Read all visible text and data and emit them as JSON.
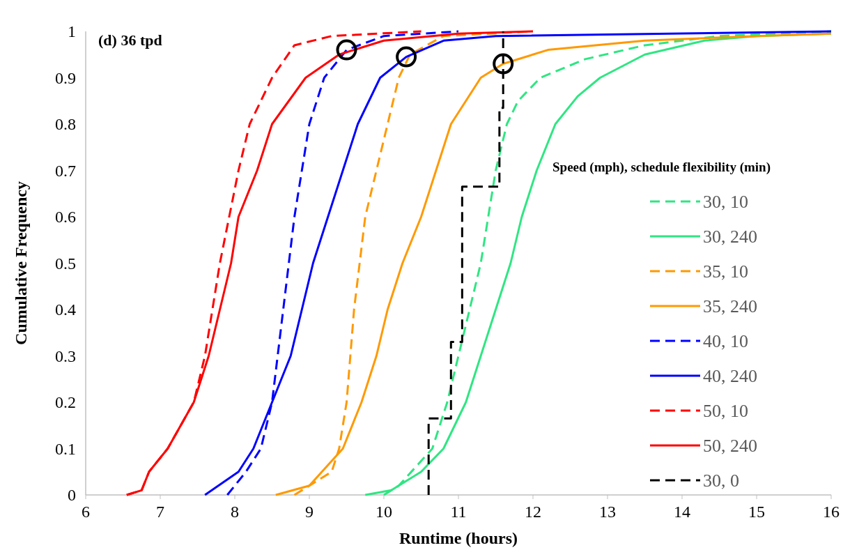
{
  "chart_data": {
    "type": "line",
    "title": "(d) 36 tpd",
    "xlabel": "Runtime (hours)",
    "ylabel": "Cumulative Frequency",
    "legend_title": "Speed (mph), schedule flexibility (min)",
    "legend": "right",
    "grid": false,
    "xlim": [
      6,
      16
    ],
    "xticks": [
      6,
      7,
      8,
      9,
      10,
      11,
      12,
      13,
      14,
      15,
      16
    ],
    "ylim": [
      0,
      1
    ],
    "yticks": [
      0,
      0.1,
      0.2,
      0.3,
      0.4,
      0.5,
      0.6,
      0.7,
      0.8,
      0.9,
      1
    ],
    "series": [
      {
        "name": "30, 10",
        "color": "#2ee682",
        "line_style": "dashed",
        "x": [
          10.0,
          10.2,
          10.65,
          10.85,
          11.0,
          11.15,
          11.3,
          11.4,
          11.5,
          11.65,
          11.8,
          12.1,
          12.7,
          13.5,
          14.5,
          16
        ],
        "values": [
          0,
          0.02,
          0.1,
          0.2,
          0.3,
          0.4,
          0.5,
          0.6,
          0.7,
          0.8,
          0.85,
          0.9,
          0.94,
          0.97,
          0.99,
          1
        ]
      },
      {
        "name": "30, 240",
        "color": "#2ee682",
        "line_style": "solid",
        "x": [
          9.75,
          10.1,
          10.5,
          10.8,
          11.1,
          11.3,
          11.5,
          11.7,
          11.85,
          12.05,
          12.3,
          12.6,
          12.9,
          13.5,
          14.3,
          15,
          16
        ],
        "values": [
          0,
          0.01,
          0.05,
          0.1,
          0.2,
          0.3,
          0.4,
          0.5,
          0.6,
          0.7,
          0.8,
          0.86,
          0.9,
          0.95,
          0.98,
          0.99,
          0.995
        ]
      },
      {
        "name": "35, 10",
        "color": "#ff9900",
        "line_style": "dashed",
        "x": [
          8.8,
          9.3,
          9.4,
          9.5,
          9.6,
          9.75,
          9.9,
          10.05,
          10.2,
          10.35,
          10.8,
          12
        ],
        "values": [
          0,
          0.05,
          0.1,
          0.2,
          0.4,
          0.6,
          0.7,
          0.8,
          0.9,
          0.95,
          0.99,
          1
        ]
      },
      {
        "name": "35, 240",
        "color": "#ff9900",
        "line_style": "solid",
        "x": [
          8.55,
          9.0,
          9.45,
          9.7,
          9.9,
          10.05,
          10.25,
          10.5,
          10.7,
          10.9,
          11.3,
          11.6,
          12.2,
          13.5,
          15,
          16
        ],
        "values": [
          0,
          0.02,
          0.1,
          0.2,
          0.3,
          0.4,
          0.5,
          0.6,
          0.7,
          0.8,
          0.9,
          0.93,
          0.96,
          0.98,
          0.99,
          0.995
        ]
      },
      {
        "name": "40, 10",
        "color": "#0000ff",
        "line_style": "dashed",
        "x": [
          7.9,
          8.15,
          8.35,
          8.5,
          8.65,
          8.8,
          9.0,
          9.2,
          9.5,
          10.0,
          11
        ],
        "values": [
          0,
          0.05,
          0.1,
          0.2,
          0.4,
          0.6,
          0.8,
          0.9,
          0.96,
          0.99,
          1
        ]
      },
      {
        "name": "40, 240",
        "color": "#0000ff",
        "line_style": "solid",
        "x": [
          7.6,
          8.05,
          8.25,
          8.5,
          8.75,
          8.9,
          9.05,
          9.25,
          9.45,
          9.65,
          9.95,
          10.3,
          10.8,
          11.5,
          16
        ],
        "values": [
          0,
          0.05,
          0.1,
          0.2,
          0.3,
          0.4,
          0.5,
          0.6,
          0.7,
          0.8,
          0.9,
          0.945,
          0.98,
          0.99,
          1
        ]
      },
      {
        "name": "50, 10",
        "color": "#ff0000",
        "line_style": "dashed",
        "x": [
          6.55,
          6.75,
          6.85,
          7.1,
          7.45,
          7.6,
          7.8,
          8.05,
          8.2,
          8.5,
          8.8,
          9.3,
          10.5
        ],
        "values": [
          0,
          0.01,
          0.05,
          0.1,
          0.2,
          0.3,
          0.5,
          0.7,
          0.8,
          0.9,
          0.97,
          0.99,
          1
        ]
      },
      {
        "name": "50, 240",
        "color": "#ff0000",
        "line_style": "solid",
        "x": [
          6.55,
          6.75,
          6.85,
          7.1,
          7.45,
          7.65,
          7.8,
          7.95,
          8.05,
          8.3,
          8.5,
          8.95,
          9.4,
          10,
          11,
          12
        ],
        "values": [
          0,
          0.01,
          0.05,
          0.1,
          0.2,
          0.3,
          0.4,
          0.5,
          0.6,
          0.7,
          0.8,
          0.9,
          0.95,
          0.98,
          0.995,
          1
        ]
      },
      {
        "name": "30, 0",
        "color": "#000000",
        "line_style": "dashed",
        "x": [
          10.6,
          10.6,
          10.9,
          10.9,
          11.05,
          11.05,
          11.55,
          11.55,
          11.6,
          11.6
        ],
        "values": [
          0,
          0.165,
          0.165,
          0.33,
          0.33,
          0.665,
          0.665,
          0.835,
          0.835,
          1
        ]
      },
      {
        "type": "scatter",
        "color": "#000000",
        "marker": "circle",
        "x": [
          9.5,
          10.3,
          11.6
        ],
        "values": [
          0.96,
          0.945,
          0.93
        ]
      }
    ]
  }
}
